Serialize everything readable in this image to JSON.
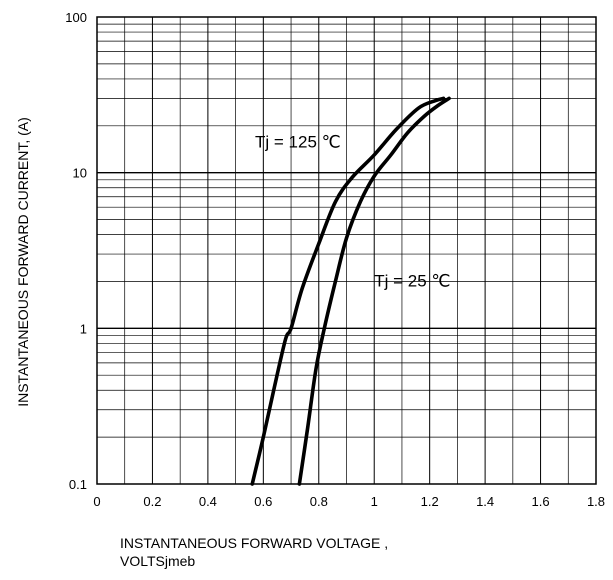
{
  "chart_data": {
    "type": "line",
    "title": "",
    "xlabel": "INSTANTANEOUS FORWARD VOLTAGE ,",
    "xlabel_line2": "VOLTSjmeb",
    "ylabel": "INSTANTANEOUS FORWARD CURRENT, (A)",
    "xlim": [
      0,
      1.8
    ],
    "ylim": [
      0.1,
      100
    ],
    "yscale": "log",
    "grid": true,
    "x_ticks": [
      0,
      0.2,
      0.4,
      0.6,
      0.8,
      1,
      1.2,
      1.4,
      1.6,
      1.8
    ],
    "x_tick_labels": [
      "0",
      "0.2",
      "0.4",
      "0.6",
      "0.8",
      "1",
      "1.2",
      "1.4",
      "1.6",
      "1.8"
    ],
    "y_ticks": [
      0.1,
      1,
      10,
      100
    ],
    "y_tick_labels": [
      "0.1",
      "1",
      "10",
      "100"
    ],
    "series": [
      {
        "name": "Tj = 125 ℃",
        "x": [
          0.56,
          0.6,
          0.64,
          0.68,
          0.7,
          0.74,
          0.8,
          0.86,
          0.92,
          1.0,
          1.08,
          1.16,
          1.22,
          1.25
        ],
        "y": [
          0.1,
          0.2,
          0.42,
          0.85,
          1.0,
          1.8,
          3.5,
          6.5,
          9.3,
          13,
          19,
          26,
          29,
          30
        ]
      },
      {
        "name": "Tj = 25 ℃",
        "x": [
          0.73,
          0.76,
          0.79,
          0.82,
          0.86,
          0.9,
          0.95,
          1.0,
          1.06,
          1.12,
          1.18,
          1.23,
          1.27
        ],
        "y": [
          0.1,
          0.23,
          0.55,
          1.0,
          2.0,
          3.8,
          6.5,
          9.5,
          13,
          18,
          23,
          27,
          30
        ]
      }
    ],
    "annotations": [
      {
        "text": "Tj = 125 ℃",
        "x": 0.57,
        "y": 14.5
      },
      {
        "text": "Tj = 25 ℃",
        "x": 1.0,
        "y": 1.85
      }
    ]
  }
}
